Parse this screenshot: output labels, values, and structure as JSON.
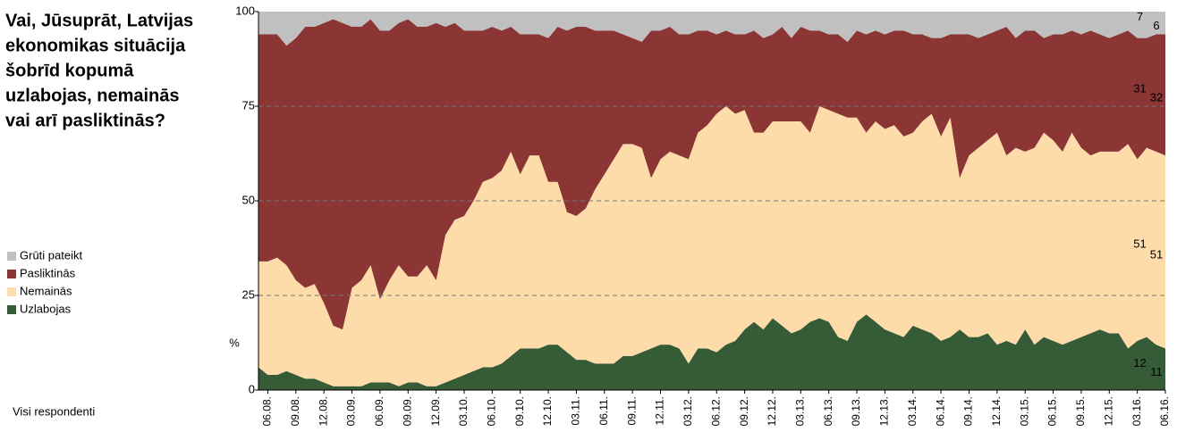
{
  "chart_data": {
    "type": "stacked_area",
    "title_lines": [
      "Vai, Jūsuprāt, Latvijas",
      "ekonomikas situācija",
      "šobrīd kopumā",
      "uzlabojas, nemainās",
      "vai arī pasliktinās?"
    ],
    "y_unit": "%",
    "footnote": "Visi respondenti",
    "ylim": [
      0,
      100
    ],
    "yticks": [
      0,
      25,
      50,
      75,
      100
    ],
    "grid": true,
    "categories": [
      null,
      "06.08.",
      null,
      null,
      "09.08.",
      null,
      null,
      "12.08.",
      null,
      null,
      "03.09.",
      null,
      null,
      "06.09.",
      null,
      null,
      "09.09.",
      null,
      null,
      "12.09.",
      null,
      null,
      "03.10.",
      null,
      null,
      "06.10.",
      null,
      null,
      "09.10.",
      null,
      null,
      "12.10.",
      null,
      null,
      "03.11.",
      null,
      null,
      "06.11.",
      null,
      null,
      "09.11.",
      null,
      null,
      "12.11.",
      null,
      null,
      "03.12.",
      null,
      null,
      "06.12.",
      null,
      null,
      "09.12.",
      null,
      null,
      "12.12.",
      null,
      null,
      "03.13.",
      null,
      null,
      "06.13.",
      null,
      null,
      "09.13.",
      null,
      null,
      "12.13.",
      null,
      null,
      "03.14.",
      null,
      null,
      "06.14.",
      null,
      null,
      "09.14.",
      null,
      null,
      "12.14.",
      null,
      null,
      "03.15.",
      null,
      null,
      "06.15.",
      null,
      null,
      "09.15.",
      null,
      null,
      "12.15.",
      null,
      null,
      "03.16.",
      null,
      null,
      "06.16."
    ],
    "series": [
      {
        "name": "Uzlabojas",
        "color": "#365b37",
        "label_color": "#ffffff",
        "values": [
          6,
          4,
          4,
          5,
          4,
          3,
          3,
          2,
          1,
          1,
          1,
          1,
          2,
          2,
          2,
          1,
          2,
          2,
          1,
          1,
          2,
          3,
          4,
          5,
          6,
          6,
          7,
          9,
          11,
          11,
          11,
          12,
          12,
          10,
          8,
          8,
          7,
          7,
          7,
          9,
          9,
          10,
          11,
          12,
          12,
          11,
          7,
          11,
          11,
          10,
          12,
          13,
          16,
          18,
          16,
          19,
          17,
          15,
          16,
          18,
          19,
          18,
          14,
          13,
          18,
          20,
          18,
          16,
          15,
          14,
          17,
          16,
          15,
          13,
          14,
          16,
          14,
          14,
          15,
          12,
          13,
          12,
          16,
          12,
          14,
          13,
          12,
          13,
          14,
          15,
          16,
          15,
          15,
          11,
          13,
          14,
          12,
          11
        ]
      },
      {
        "name": "Nemainās",
        "color": "#fddcaa",
        "label_color": "#000000",
        "values": [
          28,
          30,
          31,
          28,
          25,
          24,
          25,
          21,
          16,
          15,
          26,
          28,
          31,
          22,
          27,
          32,
          28,
          28,
          32,
          28,
          39,
          42,
          42,
          45,
          49,
          50,
          51,
          54,
          46,
          51,
          51,
          43,
          43,
          37,
          38,
          40,
          46,
          50,
          54,
          56,
          56,
          54,
          45,
          49,
          51,
          51,
          54,
          57,
          59,
          63,
          63,
          60,
          58,
          50,
          52,
          52,
          54,
          56,
          55,
          50,
          56,
          56,
          59,
          59,
          54,
          48,
          53,
          53,
          55,
          53,
          51,
          55,
          58,
          54,
          58,
          40,
          48,
          50,
          51,
          56,
          49,
          52,
          47,
          52,
          54,
          53,
          51,
          55,
          50,
          47,
          47,
          48,
          48,
          54,
          48,
          50,
          51,
          51
        ]
      },
      {
        "name": "Pasliktinās",
        "color": "#8b3535",
        "label_color": "#ffffff",
        "values": [
          60,
          60,
          59,
          58,
          64,
          69,
          68,
          74,
          81,
          81,
          69,
          67,
          65,
          71,
          66,
          64,
          68,
          66,
          63,
          68,
          55,
          52,
          49,
          45,
          40,
          40,
          37,
          33,
          37,
          32,
          32,
          38,
          41,
          48,
          50,
          48,
          42,
          38,
          34,
          29,
          28,
          28,
          39,
          34,
          33,
          32,
          33,
          27,
          25,
          21,
          20,
          21,
          20,
          27,
          25,
          23,
          25,
          22,
          25,
          27,
          20,
          20,
          21,
          20,
          23,
          26,
          24,
          25,
          25,
          28,
          26,
          23,
          20,
          26,
          22,
          38,
          32,
          29,
          28,
          27,
          34,
          29,
          32,
          31,
          25,
          28,
          31,
          27,
          30,
          33,
          31,
          30,
          31,
          30,
          32,
          29,
          31,
          32
        ]
      },
      {
        "name": "Grūti pateikt",
        "color": "#c0c0c0",
        "label_color": "#000000",
        "values": [
          6,
          6,
          6,
          9,
          7,
          4,
          4,
          3,
          2,
          3,
          4,
          4,
          2,
          5,
          5,
          3,
          2,
          4,
          4,
          3,
          4,
          3,
          5,
          5,
          5,
          4,
          5,
          4,
          6,
          6,
          6,
          7,
          4,
          5,
          4,
          4,
          5,
          5,
          5,
          6,
          7,
          8,
          5,
          5,
          4,
          6,
          6,
          5,
          5,
          6,
          5,
          6,
          6,
          5,
          7,
          6,
          4,
          7,
          4,
          5,
          5,
          6,
          6,
          8,
          5,
          6,
          5,
          6,
          5,
          5,
          6,
          6,
          7,
          7,
          6,
          6,
          6,
          7,
          6,
          5,
          4,
          7,
          5,
          5,
          7,
          6,
          6,
          5,
          6,
          5,
          6,
          7,
          6,
          5,
          7,
          7,
          7,
          6
        ]
      }
    ]
  }
}
